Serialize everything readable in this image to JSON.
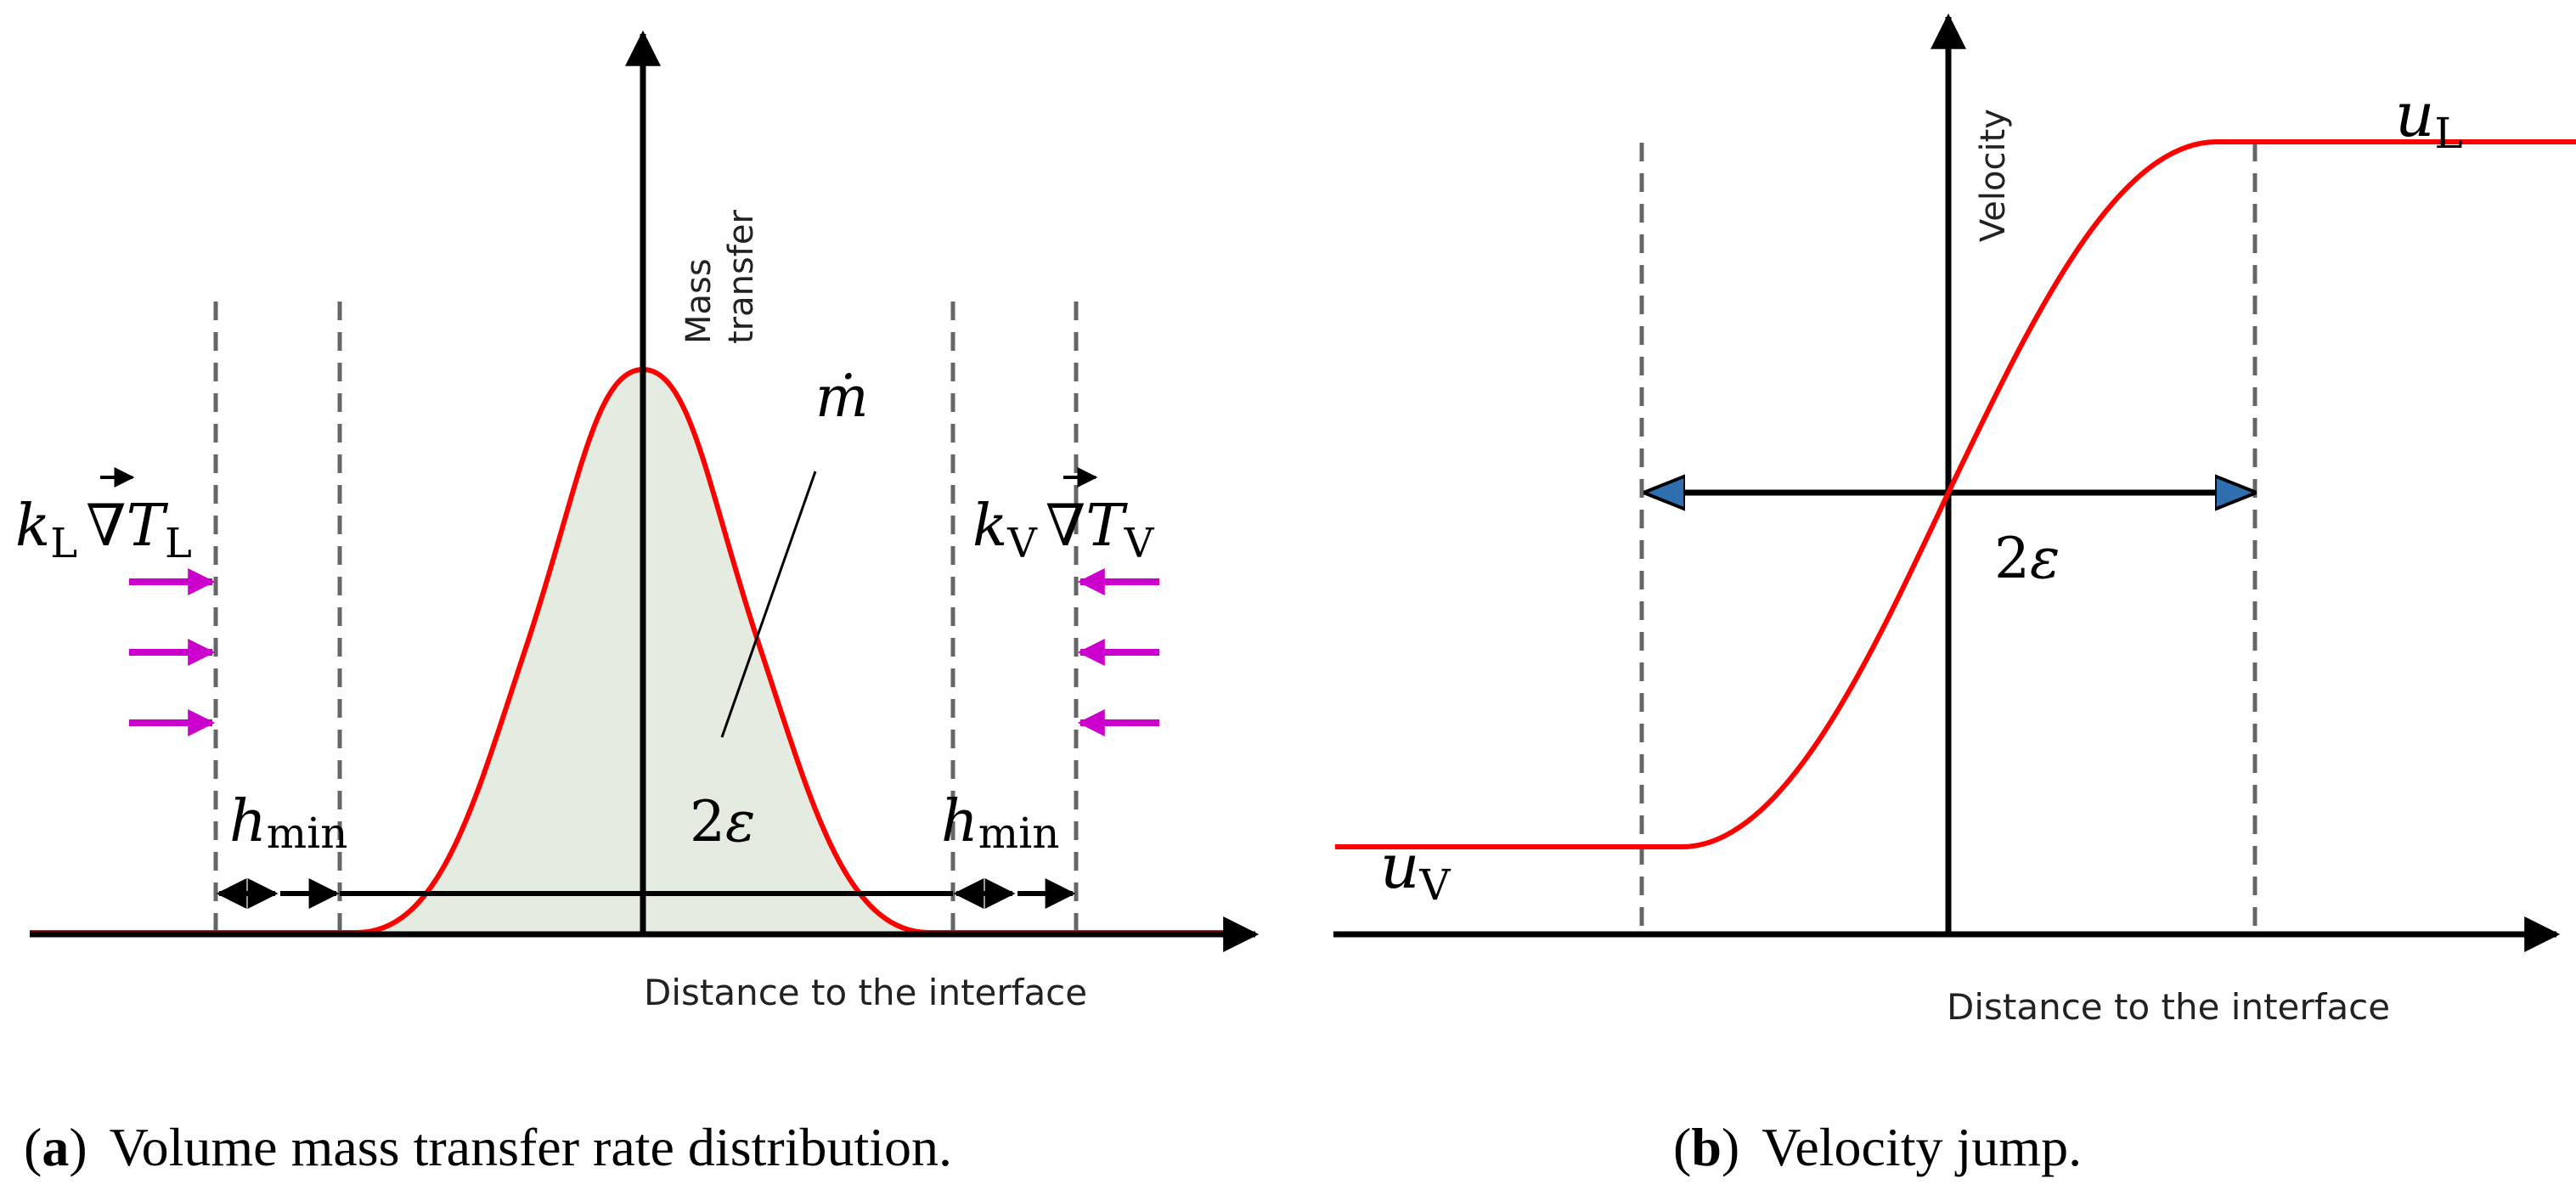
{
  "panel_a": {
    "y_axis_label_line1": "Mass",
    "y_axis_label_line2": "transfer",
    "x_axis_label": "Distance to the interface",
    "mdot_symbol": "ṁ",
    "mdot_dot": "·",
    "width_label_num": "2",
    "width_label_eps": "ε",
    "left_k": "k",
    "left_k_sub": "L",
    "left_T": "T",
    "left_T_sub": "L",
    "right_k": "k",
    "right_k_sub": "V",
    "right_T": "T",
    "right_T_sub": "V",
    "nabla": "∇",
    "hmin_h": "h",
    "hmin_sub": "min",
    "curve_color": "#ff0000",
    "fill_color": "#e4ece2",
    "flux_arrow_color": "#cc00cc"
  },
  "panel_b": {
    "y_axis_label": "Velocity",
    "x_axis_label": "Distance to the interface",
    "width_label_num": "2",
    "width_label_eps": "ε",
    "uL": "u",
    "uL_sub": "L",
    "uV": "u",
    "uV_sub": "V",
    "curve_color": "#ff0000",
    "arrowhead_color": "#2f6fb0"
  },
  "captions": {
    "a_letter": "a",
    "a_text": "Volume mass transfer rate distribution.",
    "b_letter": "b",
    "b_text": "Velocity jump."
  }
}
